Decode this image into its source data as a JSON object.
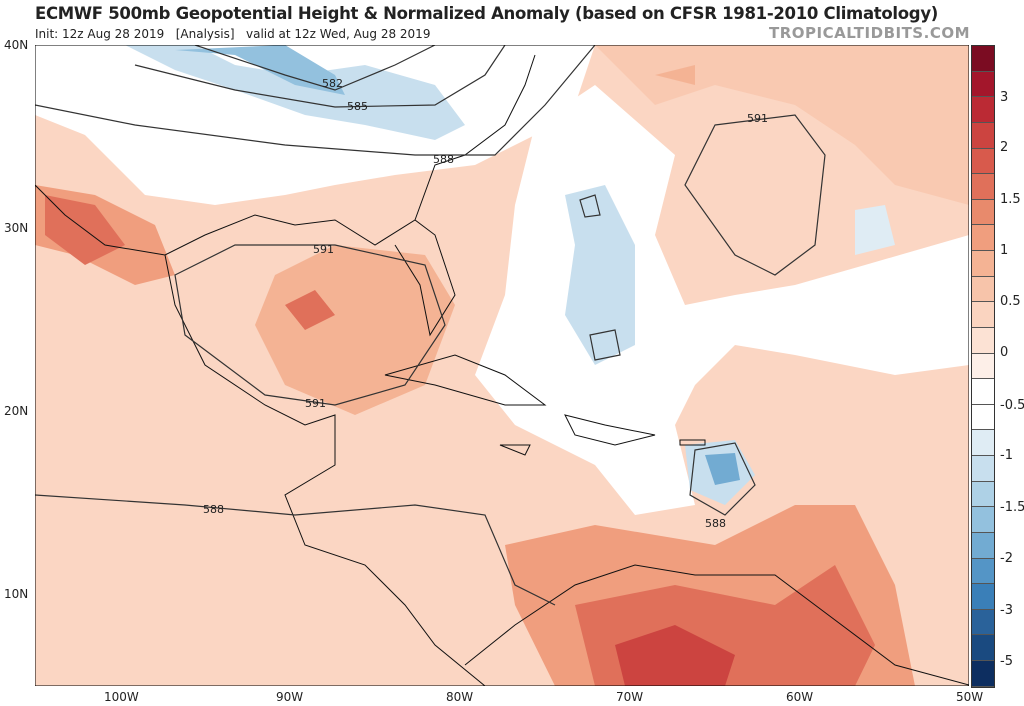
{
  "header": {
    "title": "ECMWF 500mb Geopotential Height & Normalized Anomaly (based on CFSR 1981-2010 Climatology)",
    "subtitle": "Init: 12z Aug 28 2019   [Analysis]   valid at 12z Wed, Aug 28 2019",
    "brand": "TROPICALTIDBITS.COM"
  },
  "axes": {
    "lat_labels": [
      "40N",
      "30N",
      "20N",
      "10N"
    ],
    "lon_labels": [
      "100W",
      "90W",
      "80W",
      "70W",
      "60W",
      "50W"
    ]
  },
  "contour_labels": [
    "582",
    "585",
    "588",
    "591",
    "591",
    "591",
    "588",
    "588"
  ],
  "colorbar": {
    "labels": [
      "3",
      "2",
      "1.5",
      "1",
      "0.5",
      "0",
      "-0.5",
      "-1",
      "-1.5",
      "-2",
      "-3",
      "-5"
    ],
    "colors": [
      "#7b0c22",
      "#a3162b",
      "#bb2a34",
      "#cc4440",
      "#d85a4c",
      "#e0705a",
      "#e88a6c",
      "#f09e7e",
      "#f4b394",
      "#f7c4aa",
      "#fad4c0",
      "#fce2d4",
      "#fdefe8",
      "#ffffff",
      "#ffffff",
      "#dfecf4",
      "#c8dfee",
      "#aed1e6",
      "#93c1de",
      "#72abd2",
      "#5495c6",
      "#3a7fb8",
      "#2a629a",
      "#1a4a80",
      "#0d2e60"
    ]
  }
}
